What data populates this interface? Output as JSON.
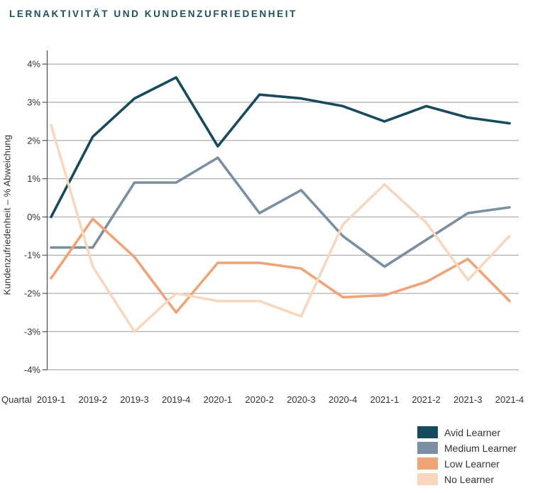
{
  "title": "LERNAKTIVITÄT UND KUNDENZUFRIEDENHEIT",
  "accent_color": "#1D4F60",
  "chart_data": {
    "type": "line",
    "title": "Lernaktivität und Kundenzufriedenheit",
    "x_axis": {
      "prefix_label": "Quartal",
      "categories": [
        "2019-1",
        "2019-2",
        "2019-3",
        "2019-4",
        "2020-1",
        "2020-2",
        "2020-3",
        "2020-4",
        "2021-1",
        "2021-2",
        "2021-3",
        "2021-4"
      ]
    },
    "y_axis": {
      "title": "Kundenzufriedenheit – % Abweichung",
      "tick_labels": [
        "4%",
        "3%",
        "2%",
        "1%",
        "0%",
        "-1%",
        "-2%",
        "-3%",
        "-4%"
      ],
      "tick_values": [
        4,
        3,
        2,
        1,
        0,
        -1,
        -2,
        -3,
        -4
      ],
      "range": [
        -4,
        4
      ],
      "unit": "%"
    },
    "grid": "horizontal",
    "legend_position": "bottom-right",
    "colors": {
      "grid": "#9B9B9B",
      "axis": "#555555",
      "text": "#333333",
      "background": "#FFFFFF"
    },
    "series": [
      {
        "name": "Avid Learner",
        "color": "#174A5C",
        "values": [
          0.0,
          2.1,
          3.1,
          3.65,
          1.85,
          3.2,
          3.1,
          2.9,
          2.5,
          2.9,
          2.6,
          2.45
        ]
      },
      {
        "name": "Medium Learner",
        "color": "#7B8FA3",
        "values": [
          -0.8,
          -0.8,
          0.9,
          0.9,
          1.55,
          0.1,
          0.7,
          -0.5,
          -1.3,
          -0.6,
          0.1,
          0.25
        ]
      },
      {
        "name": "Low Learner",
        "color": "#F0A377",
        "values": [
          -1.6,
          -0.05,
          -1.05,
          -2.5,
          -1.2,
          -1.2,
          -1.35,
          -2.1,
          -2.05,
          -1.7,
          -1.1,
          -2.2
        ]
      },
      {
        "name": "No Learner",
        "color": "#F8D7BE",
        "values": [
          2.4,
          -1.3,
          -3.0,
          -2.0,
          -2.2,
          -2.2,
          -2.6,
          -0.2,
          0.85,
          -0.15,
          -1.65,
          -0.5
        ]
      }
    ]
  }
}
